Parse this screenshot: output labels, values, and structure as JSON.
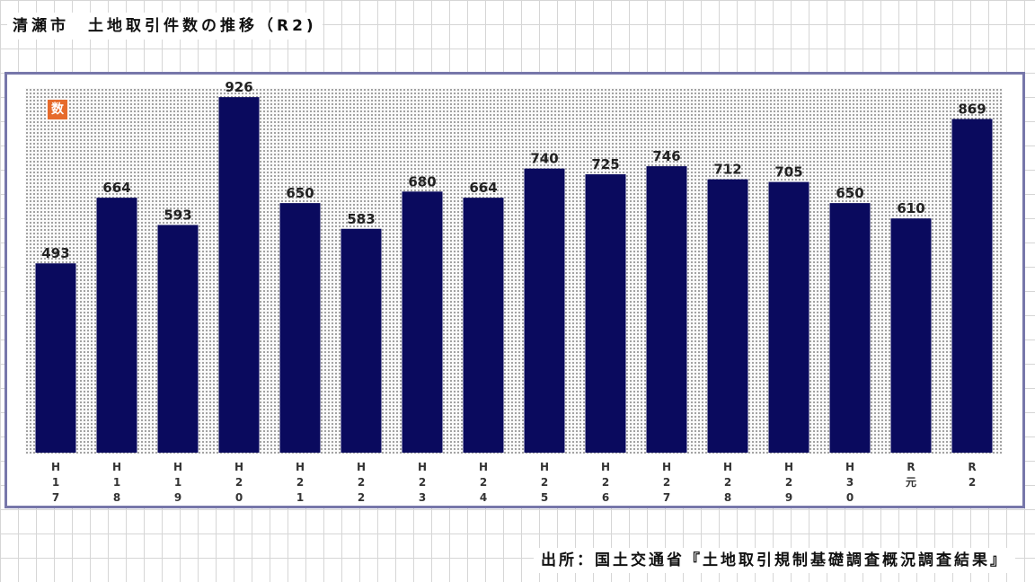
{
  "title": "清瀬市　土地取引件数の推移（R2)",
  "source": "出所：国土交通省『土地取引規制基礎調査概況調査結果』",
  "badge_label": "数",
  "colors": {
    "bar": "#0a0a5e",
    "frame": "#7777aa",
    "badge": "#e66b2c"
  },
  "chart_data": {
    "type": "bar",
    "title": "清瀬市　土地取引件数の推移（R2)",
    "categories": [
      "H17",
      "H18",
      "H19",
      "H20",
      "H21",
      "H22",
      "H23",
      "H24",
      "H25",
      "H26",
      "H27",
      "H28",
      "H29",
      "H30",
      "R元",
      "R2"
    ],
    "tick_labels": [
      [
        "H",
        "1",
        "7"
      ],
      [
        "H",
        "1",
        "8"
      ],
      [
        "H",
        "1",
        "9"
      ],
      [
        "H",
        "2",
        "0"
      ],
      [
        "H",
        "2",
        "1"
      ],
      [
        "H",
        "2",
        "2"
      ],
      [
        "H",
        "2",
        "3"
      ],
      [
        "H",
        "2",
        "4"
      ],
      [
        "H",
        "2",
        "5"
      ],
      [
        "H",
        "2",
        "6"
      ],
      [
        "H",
        "2",
        "7"
      ],
      [
        "H",
        "2",
        "8"
      ],
      [
        "H",
        "2",
        "9"
      ],
      [
        "H",
        "3",
        "0"
      ],
      [
        "R",
        "元"
      ],
      [
        "R",
        "2"
      ]
    ],
    "values": [
      493,
      664,
      593,
      926,
      650,
      583,
      680,
      664,
      740,
      725,
      746,
      712,
      705,
      650,
      610,
      869
    ],
    "ylim": [
      0,
      1000
    ],
    "grid": false,
    "legend": "none"
  }
}
